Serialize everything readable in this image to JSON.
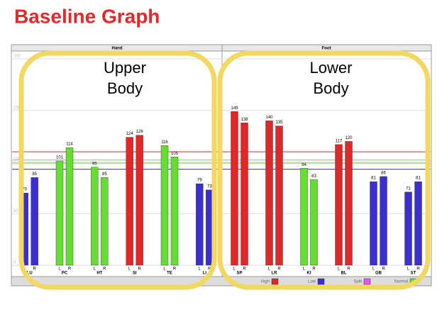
{
  "chart_data": {
    "type": "bar",
    "title": "Baseline Graph",
    "ylim": [
      0,
      200
    ],
    "yticks": [
      0,
      50,
      100,
      150,
      200
    ],
    "side_labels": [
      "L",
      "R"
    ],
    "panels": [
      {
        "name": "Hand",
        "categories": [
          "LU",
          "PC",
          "HT",
          "SI",
          "TE",
          "LI"
        ],
        "left": [
          70,
          101,
          95,
          124,
          116,
          79
        ],
        "right": [
          85,
          114,
          85,
          126,
          105,
          73
        ],
        "colors": [
          "#3b2fd0",
          "#66dd33",
          "#66dd33",
          "#e02828",
          "#66dd33",
          "#3b2fd0"
        ]
      },
      {
        "name": "Foot",
        "categories": [
          "SP",
          "LR",
          "KI",
          "BL",
          "GB",
          "ST"
        ],
        "left": [
          149,
          140,
          94,
          117,
          81,
          71
        ],
        "right": [
          138,
          135,
          83,
          120,
          86,
          81
        ],
        "colors": [
          "#e02828",
          "#e02828",
          "#66dd33",
          "#e02828",
          "#3b2fd0",
          "#3b2fd0"
        ]
      }
    ],
    "ref_lines": [
      {
        "value": 110,
        "color": "#e02828"
      },
      {
        "value": 102,
        "color": "#66dd33"
      },
      {
        "value": 99,
        "color": "#66dd33"
      },
      {
        "value": 93,
        "color": "#3b2fd0"
      }
    ],
    "legend": [
      {
        "name": "High",
        "color": "#e02828"
      },
      {
        "name": "Low",
        "color": "#3b2fd0"
      },
      {
        "name": "Split",
        "color": "#ee55ee"
      },
      {
        "name": "Normal",
        "color": "#66dd33"
      }
    ],
    "annotations": [
      [
        "Upper",
        "Body"
      ],
      [
        "Lower",
        "Body"
      ]
    ]
  }
}
